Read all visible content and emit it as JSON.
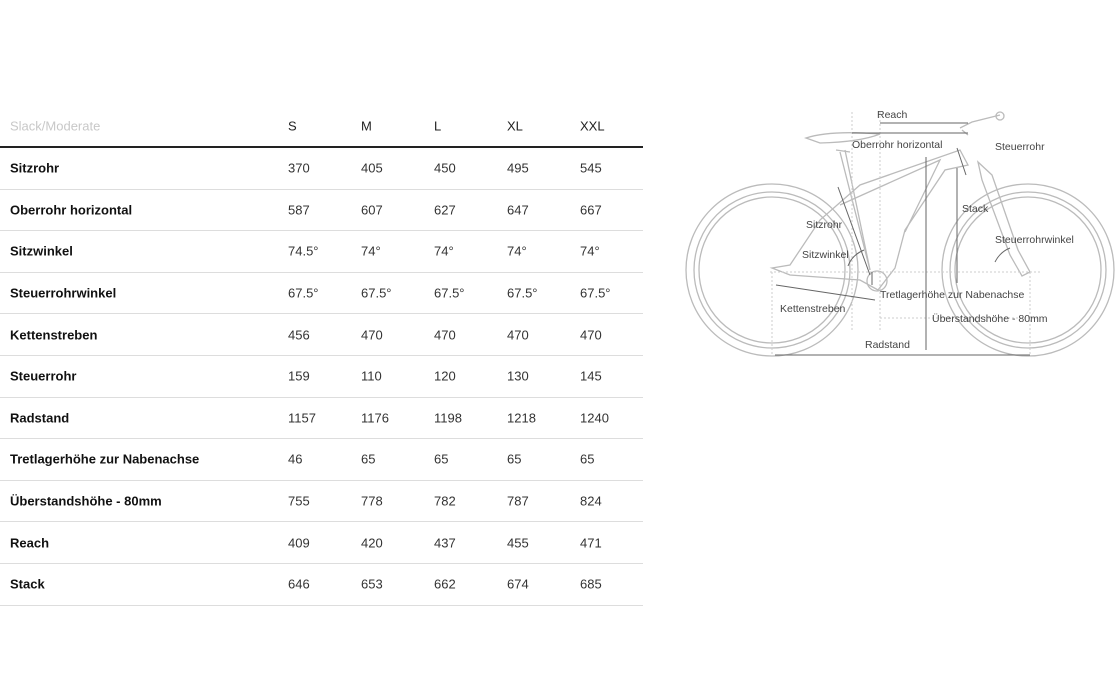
{
  "table": {
    "header": [
      "Slack/Moderate",
      "S",
      "M",
      "L",
      "XL",
      "XXL"
    ],
    "rows": [
      [
        "Sitzrohr",
        "370",
        "405",
        "450",
        "495",
        "545"
      ],
      [
        "Oberrohr horizontal",
        "587",
        "607",
        "627",
        "647",
        "667"
      ],
      [
        "Sitzwinkel",
        "74.5°",
        "74°",
        "74°",
        "74°",
        "74°"
      ],
      [
        "Steuerrohrwinkel",
        "67.5°",
        "67.5°",
        "67.5°",
        "67.5°",
        "67.5°"
      ],
      [
        "Kettenstreben",
        "456",
        "470",
        "470",
        "470",
        "470"
      ],
      [
        "Steuerrohr",
        "159",
        "110",
        "120",
        "130",
        "145"
      ],
      [
        "Radstand",
        "1157",
        "1176",
        "1198",
        "1218",
        "1240"
      ],
      [
        "Tretlagerhöhe zur Nabenachse",
        "46",
        "65",
        "65",
        "65",
        "65"
      ],
      [
        "Überstandshöhe - 80mm",
        "755",
        "778",
        "782",
        "787",
        "824"
      ],
      [
        "Reach",
        "409",
        "420",
        "437",
        "455",
        "471"
      ],
      [
        "Stack",
        "646",
        "653",
        "662",
        "674",
        "685"
      ]
    ]
  },
  "diagram": {
    "labels": {
      "reach": "Reach",
      "oberrohr": "Oberrohr horizontal",
      "steuerrohr": "Steuerrohr",
      "stack": "Stack",
      "sitzrohr": "Sitzrohr",
      "steuerrohrwinkel": "Steuerrohrwinkel",
      "sitzwinkel": "Sitzwinkel",
      "tretlager": "Tretlagerhöhe zur Nabenachse",
      "kettenstreben": "Kettenstreben",
      "ueberstand": "Überstandshöhe - 80mm",
      "radstand": "Radstand"
    }
  }
}
